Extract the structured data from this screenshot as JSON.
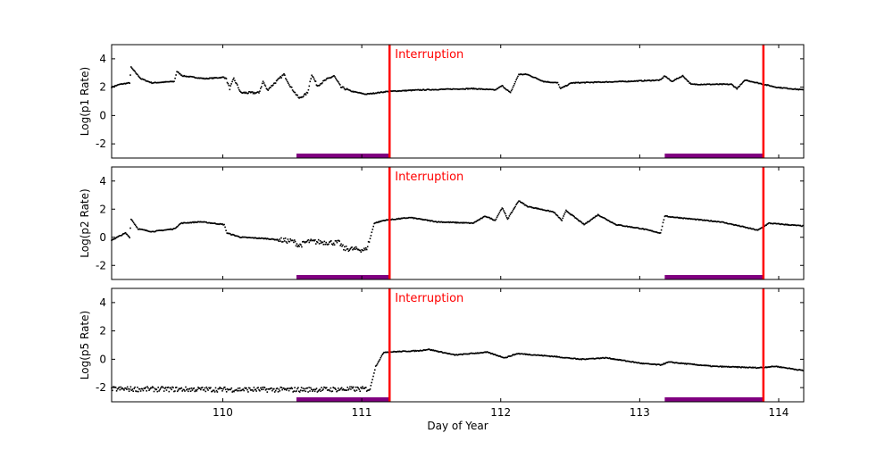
{
  "chart_data": [
    {
      "type": "scatter",
      "ylabel": "Log(p1 Rate)",
      "xlim": [
        109.2,
        114.18
      ],
      "ylim": [
        -3,
        5
      ],
      "yticks": [
        -2,
        0,
        2,
        4
      ],
      "annotation": "Interruption",
      "series": [
        {
          "points": [
            [
              109.2,
              2.0
            ],
            [
              109.26,
              2.2
            ],
            [
              109.33,
              2.3
            ],
            [
              109.34,
              3.4
            ],
            [
              109.41,
              2.6
            ],
            [
              109.49,
              2.3
            ],
            [
              109.65,
              2.4
            ],
            [
              109.67,
              3.1
            ],
            [
              109.71,
              2.8
            ],
            [
              109.87,
              2.6
            ],
            [
              110.02,
              2.7
            ],
            [
              110.05,
              1.9
            ],
            [
              110.08,
              2.6
            ],
            [
              110.13,
              1.6
            ],
            [
              110.26,
              1.6
            ],
            [
              110.29,
              2.4
            ],
            [
              110.32,
              1.8
            ],
            [
              110.44,
              2.9
            ],
            [
              110.49,
              2.0
            ],
            [
              110.55,
              1.2
            ],
            [
              110.61,
              1.6
            ],
            [
              110.64,
              2.9
            ],
            [
              110.68,
              2.1
            ],
            [
              110.74,
              2.5
            ],
            [
              110.8,
              2.8
            ],
            [
              110.85,
              2.0
            ],
            [
              110.93,
              1.7
            ],
            [
              111.03,
              1.5
            ],
            [
              111.19,
              1.7
            ],
            [
              111.41,
              1.8
            ],
            [
              111.8,
              1.9
            ],
            [
              111.96,
              1.8
            ],
            [
              112.01,
              2.1
            ],
            [
              112.07,
              1.6
            ],
            [
              112.13,
              2.9
            ],
            [
              112.19,
              2.9
            ],
            [
              112.31,
              2.4
            ],
            [
              112.41,
              2.3
            ],
            [
              112.43,
              1.9
            ],
            [
              112.51,
              2.3
            ],
            [
              112.89,
              2.4
            ],
            [
              113.15,
              2.5
            ],
            [
              113.18,
              2.8
            ],
            [
              113.23,
              2.4
            ],
            [
              113.31,
              2.8
            ],
            [
              113.37,
              2.2
            ],
            [
              113.66,
              2.2
            ],
            [
              113.7,
              1.9
            ],
            [
              113.76,
              2.5
            ],
            [
              113.98,
              2.0
            ],
            [
              114.18,
              1.8
            ]
          ]
        }
      ],
      "vlines": [
        111.2,
        113.89
      ],
      "bars": [
        [
          110.53,
          111.2
        ],
        [
          113.18,
          113.89
        ]
      ]
    },
    {
      "type": "scatter",
      "ylabel": "Log(p2 Rate)",
      "xlim": [
        109.2,
        114.18
      ],
      "ylim": [
        -3,
        5
      ],
      "yticks": [
        -2,
        0,
        2,
        4
      ],
      "annotation": "Interruption",
      "series": [
        {
          "points": [
            [
              109.2,
              -0.2
            ],
            [
              109.3,
              0.3
            ],
            [
              109.33,
              0.0
            ],
            [
              109.34,
              1.3
            ],
            [
              109.39,
              0.6
            ],
            [
              109.49,
              0.4
            ],
            [
              109.65,
              0.6
            ],
            [
              109.7,
              1.0
            ],
            [
              109.84,
              1.1
            ],
            [
              110.01,
              0.9
            ],
            [
              110.03,
              0.3
            ],
            [
              110.13,
              0.0
            ],
            [
              110.32,
              -0.1
            ],
            [
              110.51,
              -0.3
            ],
            [
              110.55,
              -0.6
            ],
            [
              110.61,
              -0.3
            ],
            [
              110.84,
              -0.4
            ],
            [
              110.87,
              -0.8
            ],
            [
              111.03,
              -0.9
            ],
            [
              111.06,
              -0.1
            ],
            [
              111.09,
              1.0
            ],
            [
              111.16,
              1.2
            ],
            [
              111.35,
              1.4
            ],
            [
              111.54,
              1.1
            ],
            [
              111.8,
              1.0
            ],
            [
              111.89,
              1.5
            ],
            [
              111.96,
              1.2
            ],
            [
              112.01,
              2.1
            ],
            [
              112.05,
              1.3
            ],
            [
              112.13,
              2.6
            ],
            [
              112.19,
              2.2
            ],
            [
              112.38,
              1.8
            ],
            [
              112.44,
              1.2
            ],
            [
              112.47,
              1.9
            ],
            [
              112.6,
              0.9
            ],
            [
              112.7,
              1.6
            ],
            [
              112.83,
              0.9
            ],
            [
              113.02,
              0.6
            ],
            [
              113.15,
              0.3
            ],
            [
              113.18,
              1.5
            ],
            [
              113.47,
              1.2
            ],
            [
              113.58,
              1.1
            ],
            [
              113.72,
              0.8
            ],
            [
              113.85,
              0.5
            ],
            [
              113.93,
              1.0
            ],
            [
              114.18,
              0.8
            ]
          ]
        }
      ],
      "vlines": [
        111.2,
        113.89
      ],
      "bars": [
        [
          110.53,
          111.2
        ],
        [
          113.18,
          113.89
        ]
      ]
    },
    {
      "type": "scatter",
      "ylabel": "Log(p5 Rate)",
      "xlabel": "Day of Year",
      "xlim": [
        109.2,
        114.18
      ],
      "ylim": [
        -3,
        5
      ],
      "xticks": [
        110,
        111,
        112,
        113,
        114
      ],
      "yticks": [
        -2,
        0,
        2,
        4
      ],
      "annotation": "Interruption",
      "series": [
        {
          "points": [
            [
              109.2,
              -2.1
            ],
            [
              110.5,
              -2.15
            ],
            [
              111.06,
              -2.1
            ],
            [
              111.1,
              -0.5
            ],
            [
              111.16,
              0.5
            ],
            [
              111.41,
              0.6
            ],
            [
              111.48,
              0.7
            ],
            [
              111.67,
              0.3
            ],
            [
              111.9,
              0.5
            ],
            [
              112.03,
              0.1
            ],
            [
              112.12,
              0.4
            ],
            [
              112.38,
              0.2
            ],
            [
              112.57,
              0.0
            ],
            [
              112.76,
              0.1
            ],
            [
              113.02,
              -0.3
            ],
            [
              113.15,
              -0.4
            ],
            [
              113.21,
              -0.2
            ],
            [
              113.53,
              -0.5
            ],
            [
              113.85,
              -0.6
            ],
            [
              113.98,
              -0.5
            ],
            [
              114.18,
              -0.8
            ]
          ]
        }
      ],
      "vlines": [
        111.2,
        113.89
      ],
      "bars": [
        [
          110.53,
          111.2
        ],
        [
          113.18,
          113.89
        ]
      ]
    }
  ],
  "colors": {
    "points": "#000000",
    "vline": "#ff0000",
    "bar": "#800080",
    "annotation": "#ff0000"
  }
}
